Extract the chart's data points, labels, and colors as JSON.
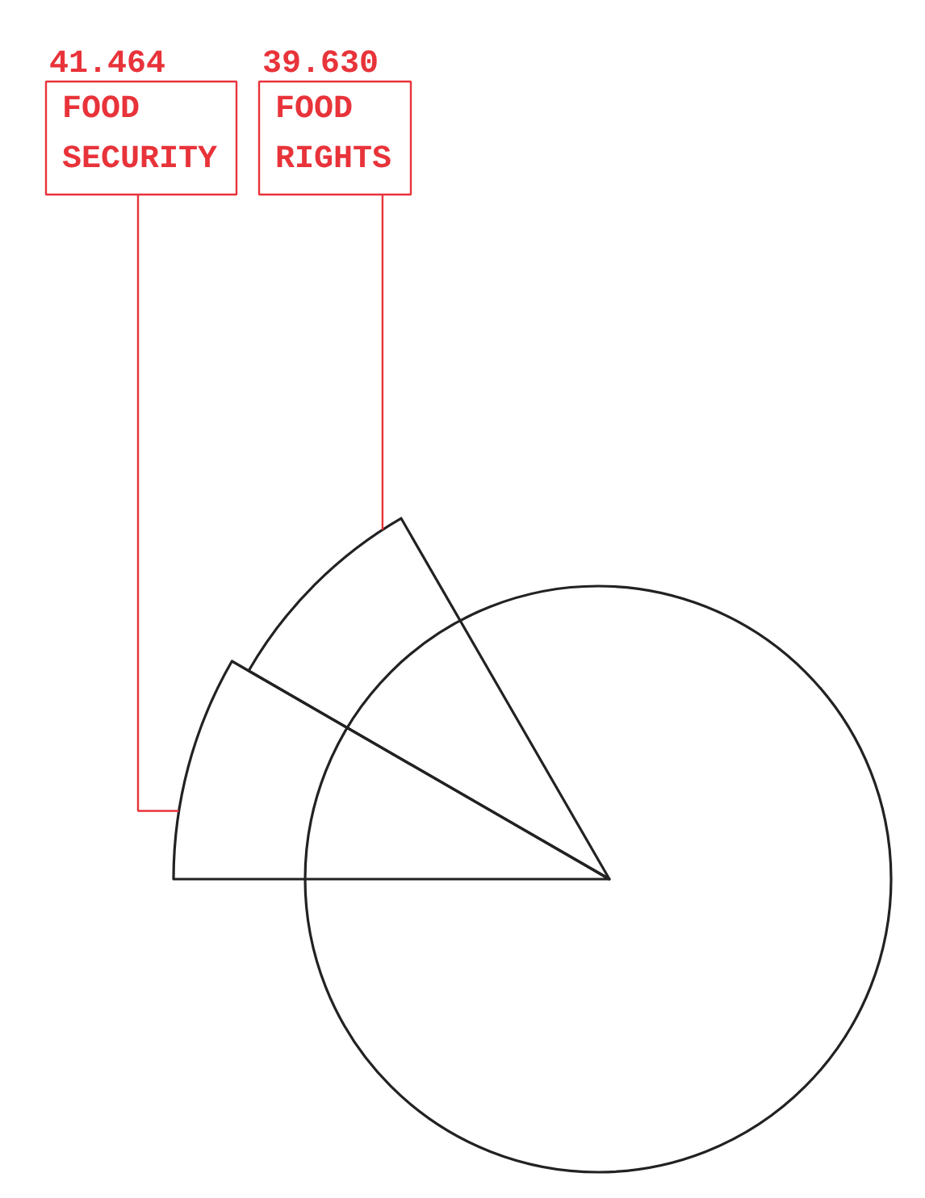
{
  "chart_data": {
    "type": "other",
    "categories": [
      "FOOD SECURITY",
      "FOOD RIGHTS"
    ],
    "values": [
      41.464,
      39.63
    ],
    "value_labels": [
      "41.464",
      "39.630"
    ],
    "colors": [
      "#e8333a",
      "#e8333a"
    ]
  }
}
